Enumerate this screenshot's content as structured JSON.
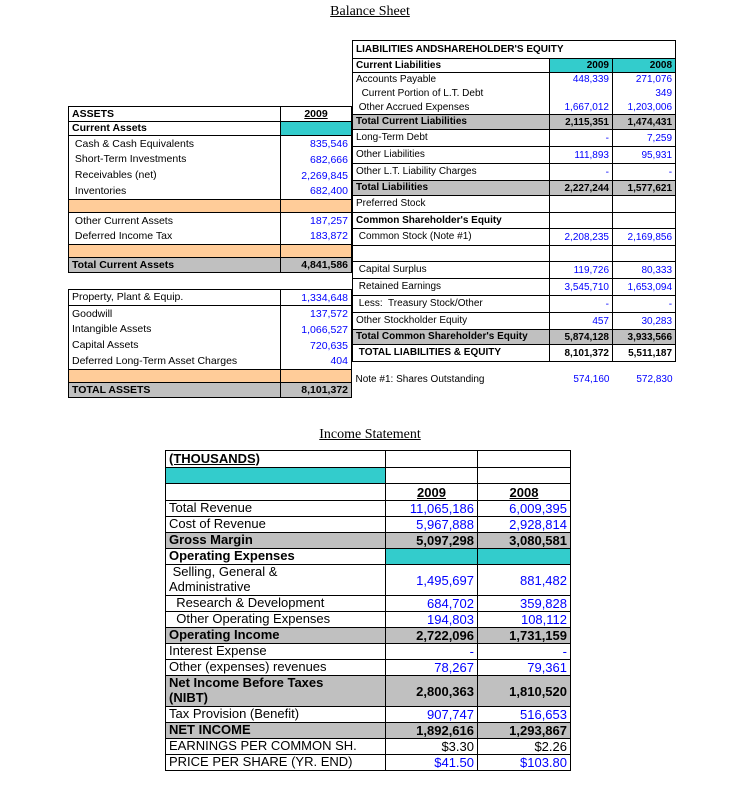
{
  "titles": {
    "balance_sheet": "Balance Sheet",
    "income_statement": "Income Statement"
  },
  "colors": {
    "teal": "#33cccc",
    "peach": "#ffcc99",
    "gray": "#c0c0c0",
    "value_blue": "#0000ff"
  },
  "assets": {
    "col_label": "ASSETS",
    "col_year": "2009",
    "rows": [
      {
        "label": "Current Assets",
        "value": "",
        "style": "section"
      },
      {
        "label": " Cash & Cash Equivalents",
        "value": "835,546",
        "style": "item"
      },
      {
        "label": " Short-Term Investments",
        "value": "682,666",
        "style": "item"
      },
      {
        "label": " Receivables (net)",
        "value": "2,269,845",
        "style": "item"
      },
      {
        "label": " Inventories",
        "value": "682,400",
        "style": "item-end"
      },
      {
        "label": "",
        "value": "",
        "style": "peach"
      },
      {
        "label": " Other Current Assets",
        "value": "187,257",
        "style": "item"
      },
      {
        "label": " Deferred Income Tax",
        "value": "183,872",
        "style": "item-end"
      },
      {
        "label": "",
        "value": "",
        "style": "peach"
      },
      {
        "label": "Total Current Assets",
        "value": "4,841,586",
        "style": "total"
      },
      {
        "label": "",
        "value": "",
        "style": "spacer"
      },
      {
        "label": "Property, Plant & Equip.",
        "value": "1,334,648",
        "style": "item-first"
      },
      {
        "label": "Goodwill",
        "value": "137,572",
        "style": "item"
      },
      {
        "label": "Intangible Assets",
        "value": "1,066,527",
        "style": "item"
      },
      {
        "label": "Capital Assets",
        "value": "720,635",
        "style": "item"
      },
      {
        "label": "Deferred Long-Term Asset Charges",
        "value": "404",
        "style": "item-end"
      },
      {
        "label": "",
        "value": "",
        "style": "peach"
      },
      {
        "label": "TOTAL ASSETS",
        "value": "8,101,372",
        "style": "total"
      }
    ]
  },
  "liabilities": {
    "title": "LIABILITIES ANDSHAREHOLDER'S EQUITY",
    "col_label": "Current Liabilities",
    "col_2009": "2009",
    "col_2008": "2008",
    "rows": [
      {
        "label": "Accounts Payable",
        "v2009": "448,339",
        "v2008": "271,076",
        "style": "item"
      },
      {
        "label": "  Current Portion of L.T. Debt",
        "v2009": "",
        "v2008": "349",
        "style": "item"
      },
      {
        "label": " Other Accrued Expenses",
        "v2009": "1,667,012",
        "v2008": "1,203,006",
        "style": "item-end"
      },
      {
        "label": "Total Current Liabilities",
        "v2009": "2,115,351",
        "v2008": "1,474,431",
        "style": "total"
      },
      {
        "label": "Long-Term Debt",
        "v2009": "-",
        "v2008": "7,259",
        "style": "item-box"
      },
      {
        "label": "Other Liabilities",
        "v2009": "111,893",
        "v2008": "95,931",
        "style": "item-box"
      },
      {
        "label": "Other L.T. Liability Charges",
        "v2009": "-",
        "v2008": "-",
        "style": "item-box"
      },
      {
        "label": "Total Liabilities",
        "v2009": "2,227,244",
        "v2008": "1,577,621",
        "style": "total"
      },
      {
        "label": "Preferred Stock",
        "v2009": "",
        "v2008": "",
        "style": "item-box"
      },
      {
        "label": "Common Shareholder's Equity",
        "v2009": "",
        "v2008": "",
        "style": "section"
      },
      {
        "label": " Common Stock (Note #1)",
        "v2009": "2,208,235",
        "v2008": "2,169,856",
        "style": "item-box"
      },
      {
        "label": "",
        "v2009": "",
        "v2008": "",
        "style": "spacer"
      },
      {
        "label": " Capital Surplus",
        "v2009": "119,726",
        "v2008": "80,333",
        "style": "item-box"
      },
      {
        "label": " Retained Earnings",
        "v2009": "3,545,710",
        "v2008": "1,653,094",
        "style": "item-box"
      },
      {
        "label": " Less:  Treasury Stock/Other",
        "v2009": "-",
        "v2008": "-",
        "style": "item-box"
      },
      {
        "label": "Other Stockholder Equity",
        "v2009": "457",
        "v2008": "30,283",
        "style": "item-box"
      },
      {
        "label": "Total Common Shareholder's Equity",
        "v2009": "5,874,128",
        "v2008": "3,933,566",
        "style": "total"
      },
      {
        "label": " TOTAL LIABILITIES & EQUITY",
        "v2009": "8,101,372",
        "v2008": "5,511,187",
        "style": "grandtotal"
      },
      {
        "label": "Note #1: Shares Outstanding",
        "v2009": "574,160",
        "v2008": "572,830",
        "style": "note"
      }
    ]
  },
  "income": {
    "thousands": "(THOUSANDS)",
    "col_2009": "2009",
    "col_2008": "2008",
    "rows": [
      {
        "label": "Total Revenue",
        "v2009": "11,065,186",
        "v2008": "6,009,395",
        "style": "item"
      },
      {
        "label": "Cost of Revenue",
        "v2009": "5,967,888",
        "v2008": "2,928,814",
        "style": "item"
      },
      {
        "label": "Gross Margin",
        "v2009": "5,097,298",
        "v2008": "3,080,581",
        "style": "total"
      },
      {
        "label": "Operating Expenses",
        "v2009": "",
        "v2008": "",
        "style": "section-teal"
      },
      {
        "label": " Selling, General &\nAdministrative",
        "v2009": "1,495,697",
        "v2008": "881,482",
        "style": "item2"
      },
      {
        "label": "  Research & Development",
        "v2009": "684,702",
        "v2008": "359,828",
        "style": "item"
      },
      {
        "label": "  Other Operating Expenses",
        "v2009": "194,803",
        "v2008": "108,112",
        "style": "item"
      },
      {
        "label": "Operating Income",
        "v2009": "2,722,096",
        "v2008": "1,731,159",
        "style": "total"
      },
      {
        "label": "Interest Expense",
        "v2009": "-",
        "v2008": "-",
        "style": "item"
      },
      {
        "label": "Other (expenses) revenues",
        "v2009": "78,267",
        "v2008": "79,361",
        "style": "item"
      },
      {
        "label": "Net Income Before Taxes\n(NIBT)",
        "v2009": "2,800,363",
        "v2008": "1,810,520",
        "style": "total2"
      },
      {
        "label": "Tax Provision (Benefit)",
        "v2009": "907,747",
        "v2008": "516,653",
        "style": "item"
      },
      {
        "label": "NET INCOME",
        "v2009": "1,892,616",
        "v2008": "1,293,867",
        "style": "total"
      },
      {
        "label": "EARNINGS PER COMMON SH.",
        "v2009": "$3.30",
        "v2008": "$2.26",
        "style": "eps"
      },
      {
        "label": "PRICE PER SHARE (YR. END)",
        "v2009": "$41.50",
        "v2008": "$103.80",
        "style": "item"
      }
    ]
  }
}
